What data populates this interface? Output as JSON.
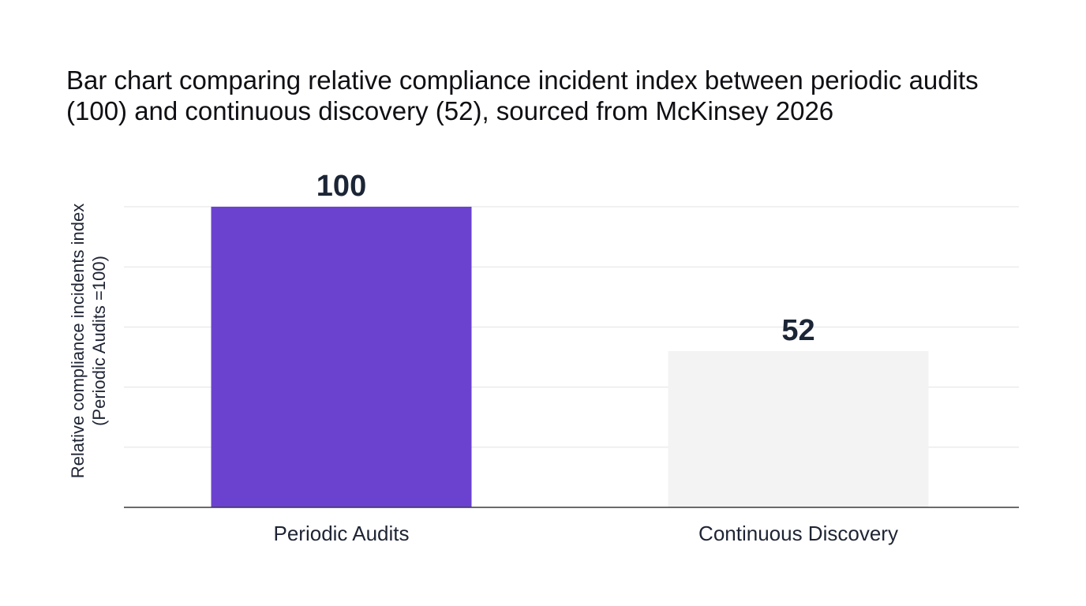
{
  "chart_data": {
    "type": "bar",
    "title": "Bar chart comparing relative compliance incident index between periodic audits (100) and continuous discovery (52), sourced from McKinsey 2026",
    "xlabel": "",
    "ylabel": [
      "Relative compliance incidents index",
      "(Periodic Audits =100)"
    ],
    "categories": [
      "Periodic Audits",
      "Continuous Discovery"
    ],
    "values": [
      100,
      52
    ],
    "data_labels": [
      "100",
      "52"
    ],
    "bar_colors": [
      "#6b42cf",
      "#f3f3f3"
    ],
    "ylim": [
      0,
      100
    ],
    "gridlines": [
      20,
      40,
      60,
      80,
      100
    ],
    "grid": true,
    "legend": "none"
  },
  "colors": {
    "gridline": "#e3e3e3",
    "axis": "#3a3a3a",
    "data_label": "#1b2536",
    "tick_label": "#1e2433"
  }
}
